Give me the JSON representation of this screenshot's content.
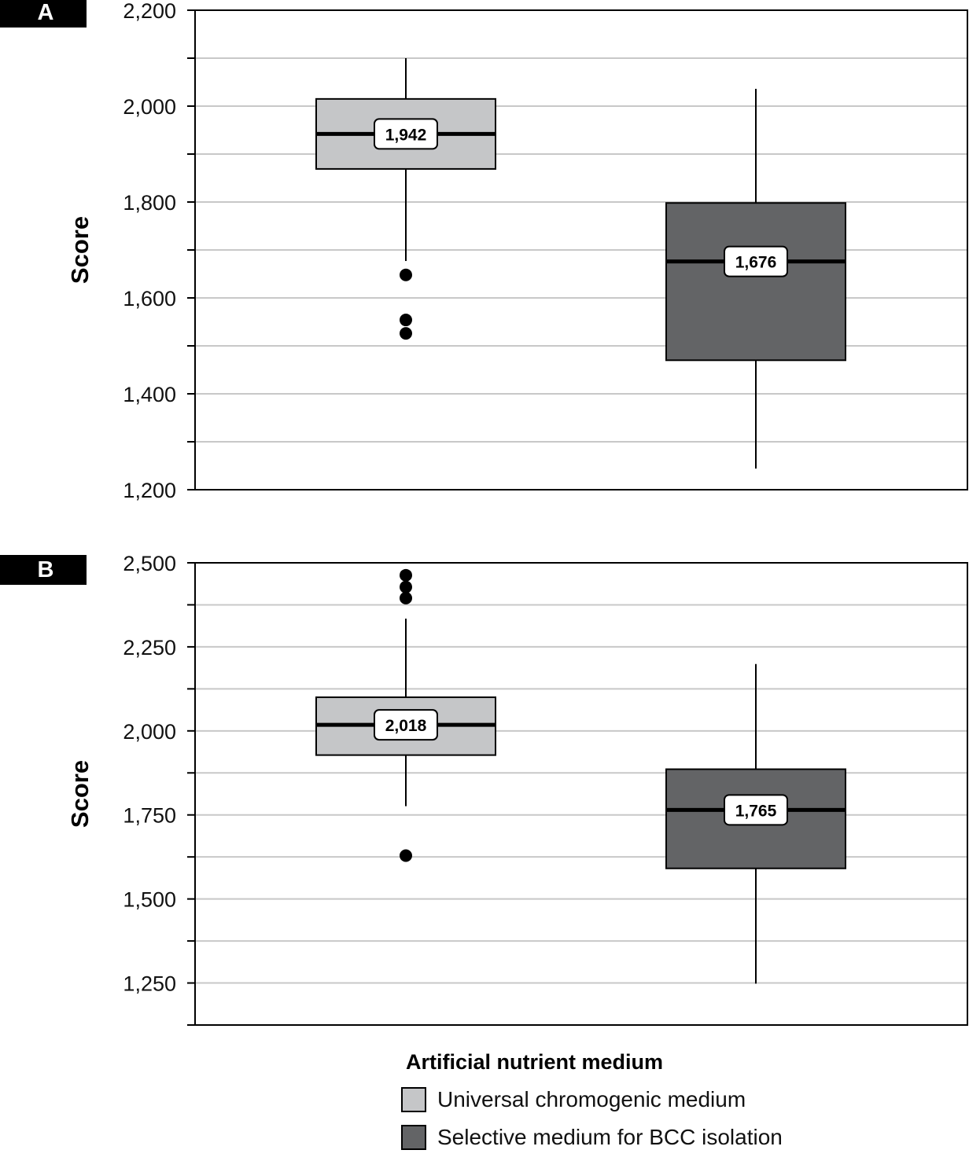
{
  "legend": {
    "title": "Artificial nutrient medium",
    "items": [
      {
        "label": "Universal chromogenic medium",
        "color": "#c5c6c8"
      },
      {
        "label": "Selective medium for BCC isolation",
        "color": "#636466"
      }
    ]
  },
  "chart_data": [
    {
      "type": "box",
      "panel_label": "A",
      "ylabel": "Score",
      "ylim": [
        1200,
        2200
      ],
      "yticks": [
        1200,
        1400,
        1600,
        1800,
        2000,
        2200
      ],
      "ytick_labels": [
        "1,200",
        "1,400",
        "1,600",
        "1,800",
        "2,000",
        "2,200"
      ],
      "minor_step": 100,
      "grid": true,
      "series": [
        {
          "name": "Universal chromogenic medium",
          "q1": 1869,
          "median": 1942,
          "q3": 2015,
          "whisker_low": 1677,
          "whisker_high": 2100,
          "outliers": [
            1648,
            1554,
            1526
          ],
          "median_label": "1,942"
        },
        {
          "name": "Selective medium for BCC isolation",
          "q1": 1470,
          "median": 1676,
          "q3": 1798,
          "whisker_low": 1244,
          "whisker_high": 2036,
          "outliers": [],
          "median_label": "1,676"
        }
      ]
    },
    {
      "type": "box",
      "panel_label": "B",
      "ylabel": "Score",
      "ylim": [
        1125,
        2500
      ],
      "yticks": [
        1250,
        1500,
        1750,
        2000,
        2250,
        2500
      ],
      "ytick_labels": [
        "1,250",
        "1,500",
        "1,750",
        "2,000",
        "2,250",
        "2,500"
      ],
      "minor_step": 125,
      "grid": true,
      "series": [
        {
          "name": "Universal chromogenic medium",
          "q1": 1928,
          "median": 2018,
          "q3": 2100,
          "whisker_low": 1776,
          "whisker_high": 2334,
          "outliers": [
            2463,
            2428,
            2395,
            1629
          ],
          "median_label": "2,018"
        },
        {
          "name": "Selective medium for BCC isolation",
          "q1": 1591,
          "median": 1765,
          "q3": 1886,
          "whisker_low": 1248,
          "whisker_high": 2199,
          "outliers": [],
          "median_label": "1,765"
        }
      ]
    }
  ]
}
